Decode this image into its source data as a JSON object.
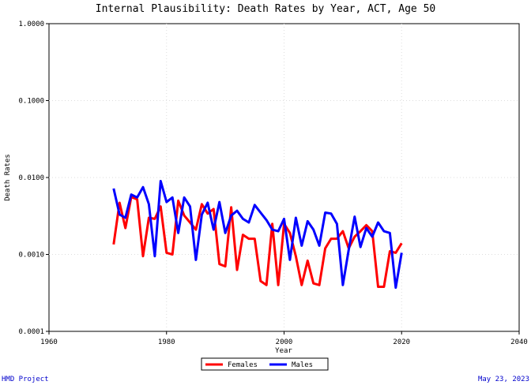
{
  "footer": {
    "left": "HMD Project",
    "right": "May 23, 2023"
  },
  "chart_data": {
    "type": "line",
    "title": "Internal Plausibility: Death Rates by Year, ACT, Age 50",
    "xlabel": "Year",
    "ylabel": "Death Rates",
    "xlim": [
      1960,
      2040
    ],
    "ylim": [
      0.0001,
      1.0
    ],
    "yscale": "log",
    "grid": true,
    "legend_position": "bottom-center",
    "x_ticks": [
      "1960",
      "1980",
      "2000",
      "2020",
      "2040"
    ],
    "y_ticks": [
      "0.0001",
      "0.0010",
      "0.0100",
      "0.1000",
      "1.0000"
    ],
    "series": [
      {
        "name": "Females",
        "color": "#ff0000",
        "x": [
          1971,
          1972,
          1973,
          1974,
          1975,
          1976,
          1977,
          1978,
          1979,
          1980,
          1981,
          1982,
          1983,
          1984,
          1985,
          1986,
          1987,
          1988,
          1989,
          1990,
          1991,
          1992,
          1993,
          1994,
          1995,
          1996,
          1997,
          1998,
          1999,
          2000,
          2001,
          2002,
          2003,
          2004,
          2005,
          2006,
          2007,
          2008,
          2009,
          2010,
          2011,
          2012,
          2013,
          2014,
          2015,
          2016,
          2017,
          2018,
          2019,
          2020
        ],
        "values": [
          0.00135,
          0.0047,
          0.0022,
          0.0056,
          0.0052,
          0.00095,
          0.003,
          0.0029,
          0.0042,
          0.00105,
          0.001,
          0.005,
          0.0032,
          0.0026,
          0.0021,
          0.0045,
          0.0034,
          0.0039,
          0.00075,
          0.0007,
          0.0041,
          0.00063,
          0.0018,
          0.0016,
          0.0016,
          0.00045,
          0.0004,
          0.0025,
          0.0004,
          0.0025,
          0.0019,
          0.00095,
          0.0004,
          0.00083,
          0.00042,
          0.0004,
          0.0012,
          0.0016,
          0.0016,
          0.002,
          0.0012,
          0.0017,
          0.002,
          0.0024,
          0.002,
          0.00038,
          0.00038,
          0.0011,
          0.00105,
          0.0014
        ]
      },
      {
        "name": "Males",
        "color": "#0000ff",
        "x": [
          1971,
          1972,
          1973,
          1974,
          1975,
          1976,
          1977,
          1978,
          1979,
          1980,
          1981,
          1982,
          1983,
          1984,
          1985,
          1986,
          1987,
          1988,
          1989,
          1990,
          1991,
          1992,
          1993,
          1994,
          1995,
          1996,
          1997,
          1998,
          1999,
          2000,
          2001,
          2002,
          2003,
          2004,
          2005,
          2006,
          2007,
          2008,
          2009,
          2010,
          2011,
          2012,
          2013,
          2014,
          2015,
          2016,
          2017,
          2018,
          2019,
          2020
        ],
        "values": [
          0.0072,
          0.0033,
          0.003,
          0.006,
          0.0055,
          0.0075,
          0.0045,
          0.00095,
          0.009,
          0.0048,
          0.0055,
          0.0019,
          0.0055,
          0.0042,
          0.00085,
          0.0033,
          0.0047,
          0.0021,
          0.0048,
          0.0019,
          0.0032,
          0.0037,
          0.0029,
          0.0026,
          0.0044,
          0.0035,
          0.0028,
          0.0021,
          0.002,
          0.0029,
          0.00085,
          0.003,
          0.0013,
          0.0027,
          0.0021,
          0.0013,
          0.0035,
          0.0034,
          0.0025,
          0.0004,
          0.00115,
          0.0031,
          0.00125,
          0.0022,
          0.0017,
          0.0026,
          0.002,
          0.0019,
          0.00037,
          0.00105
        ]
      }
    ]
  }
}
